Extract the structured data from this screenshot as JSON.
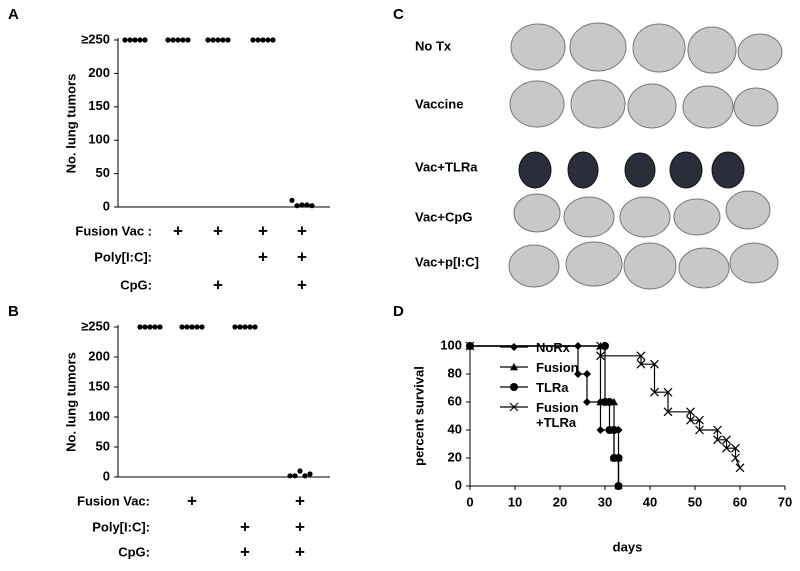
{
  "chart_data": [
    {
      "type": "strip",
      "panel": "A",
      "y_label": "No. lung tumors",
      "ylim": [
        0,
        250
      ],
      "yticks": [
        0,
        50,
        100,
        150,
        200,
        {
          "value": 250,
          "label": "≥250"
        }
      ],
      "values": [
        [
          250,
          250,
          250,
          250,
          250
        ],
        [
          250,
          250,
          250,
          250,
          250
        ],
        [
          250,
          250,
          250,
          250,
          250
        ],
        [
          250,
          250,
          250,
          250,
          250
        ],
        [
          10,
          2,
          3,
          3,
          2
        ]
      ],
      "treatments": [
        {
          "name": "Fusion Vac :",
          "marks": [
            null,
            "+",
            "+",
            "+",
            "+"
          ]
        },
        {
          "name": "Poly[I:C]:",
          "marks": [
            null,
            null,
            null,
            "+",
            "+"
          ]
        },
        {
          "name": "CpG:",
          "marks": [
            null,
            null,
            "+",
            null,
            "+"
          ]
        }
      ]
    },
    {
      "type": "strip",
      "panel": "B",
      "y_label": "No. lung tumors",
      "ylim": [
        0,
        250
      ],
      "yticks": [
        0,
        50,
        100,
        150,
        200,
        {
          "value": 250,
          "label": "≥250"
        }
      ],
      "values": [
        [
          250,
          250,
          250,
          250,
          250
        ],
        [
          250,
          250,
          250,
          250,
          250
        ],
        [
          250,
          250,
          250,
          250,
          250
        ],
        [
          2,
          2,
          10,
          2,
          5
        ]
      ],
      "treatments": [
        {
          "name": "Fusion Vac:",
          "marks": [
            null,
            "+",
            null,
            "+"
          ]
        },
        {
          "name": "Poly[I:C]:",
          "marks": [
            null,
            null,
            "+",
            "+"
          ]
        },
        {
          "name": "CpG:",
          "marks": [
            null,
            null,
            "+",
            "+"
          ]
        }
      ]
    },
    {
      "type": "line",
      "panel": "D",
      "x_label": "days",
      "y_label": "percent survival",
      "xlim": [
        0,
        70
      ],
      "xticks": [
        0,
        10,
        20,
        30,
        40,
        50,
        60,
        70
      ],
      "ylim": [
        0,
        100
      ],
      "yticks": [
        0,
        20,
        40,
        60,
        80,
        100
      ],
      "series": [
        {
          "name": "NoRx",
          "marker": "diamond",
          "color": "#000",
          "x": [
            0,
            24,
            24,
            26,
            26,
            29,
            29,
            33,
            33
          ],
          "values": [
            100,
            100,
            80,
            80,
            60,
            60,
            40,
            40,
            0
          ]
        },
        {
          "name": "Fusion",
          "marker": "triangle",
          "color": "#000",
          "x": [
            0,
            29,
            29,
            32,
            32,
            33,
            33
          ],
          "values": [
            100,
            100,
            60,
            60,
            20,
            20,
            0
          ]
        },
        {
          "name": "TLRa",
          "marker": "circle",
          "color": "#000",
          "x": [
            0,
            30,
            30,
            31,
            31,
            32,
            32,
            33,
            33
          ],
          "values": [
            100,
            100,
            60,
            60,
            40,
            40,
            20,
            20,
            0
          ]
        },
        {
          "name": "Fusion +TLRa",
          "marker": "cross",
          "color": "#000",
          "x": [
            0,
            29,
            29,
            38,
            38,
            41,
            41,
            44,
            44,
            49,
            49,
            51,
            51,
            55,
            55,
            57,
            57,
            59,
            59,
            60
          ],
          "values": [
            100,
            100,
            93,
            93,
            87,
            87,
            67,
            67,
            53,
            53,
            47,
            47,
            40,
            40,
            33,
            33,
            27,
            27,
            20,
            13
          ]
        }
      ]
    }
  ],
  "photo_panel": {
    "panel": "C",
    "labels": [
      "No Tx",
      "Vaccine",
      "Vac+TLRa",
      "Vac+CpG",
      "Vac+p[I:C]"
    ]
  }
}
